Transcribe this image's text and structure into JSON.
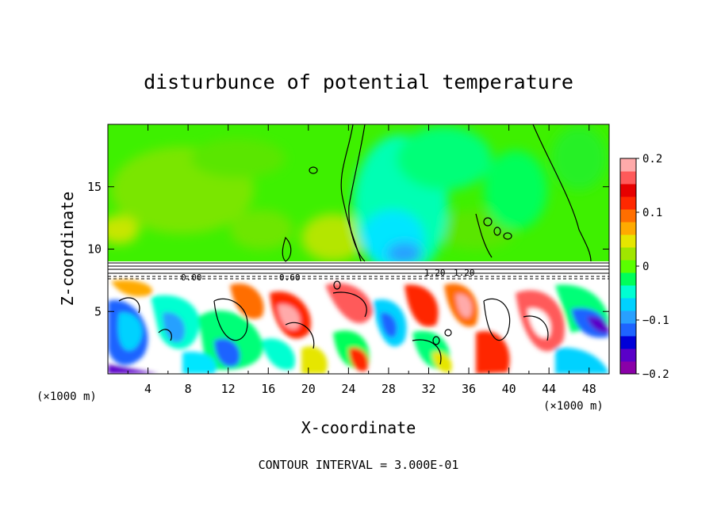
{
  "chart_data": {
    "type": "heatmap",
    "title": "disturbunce of potential temperature",
    "xlabel": "X-coordinate",
    "ylabel": "Z-coordinate",
    "x_unit": "(×1000 m)",
    "x_unit_right": "(×1000 m)",
    "xlim": [
      0,
      50
    ],
    "ylim": [
      0,
      20
    ],
    "x_ticks": [
      "4",
      "8",
      "12",
      "16",
      "20",
      "24",
      "28",
      "32",
      "36",
      "40",
      "44",
      "48"
    ],
    "y_ticks": [
      "5",
      "10",
      "15"
    ],
    "x_tick_values": [
      4,
      8,
      12,
      16,
      20,
      24,
      28,
      32,
      36,
      40,
      44,
      48
    ],
    "y_tick_values": [
      5,
      10,
      15
    ],
    "colorbar": {
      "range": [
        -0.2,
        0.2
      ],
      "labels": [
        "0.2",
        "0.1",
        "0",
        "−0.1",
        "−0.2"
      ],
      "label_values": [
        0.2,
        0.1,
        0,
        -0.1,
        -0.2
      ],
      "colors": [
        "#8a00a8",
        "#5a00c8",
        "#0000d8",
        "#1e64ff",
        "#28a0ff",
        "#00d2ff",
        "#00ffd2",
        "#00ff5a",
        "#5aff00",
        "#a0e600",
        "#e6e600",
        "#ffaa00",
        "#ff6e00",
        "#ff2800",
        "#e60000",
        "#ff5a5a",
        "#ffaaaa"
      ]
    },
    "contour_labels": [
      "0.00",
      "0.60",
      "1.20",
      "1.20"
    ],
    "upper_layer_value": 0.0,
    "inversion_height": 8.8
  },
  "footer": {
    "contour_interval": "CONTOUR INTERVAL = 3.000E-01"
  }
}
